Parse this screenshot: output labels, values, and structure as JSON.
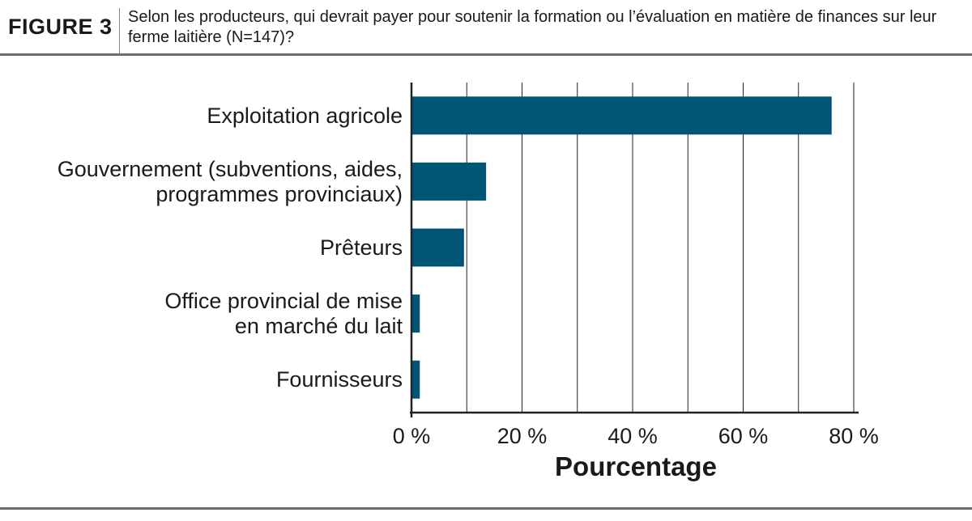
{
  "figure": {
    "label": "FIGURE 3",
    "title": "Selon les producteurs, qui devrait payer pour soutenir la formation ou l’évaluation en matière de finances sur leur ferme laitière (N=147)?"
  },
  "chart_data": {
    "type": "bar",
    "orientation": "horizontal",
    "categories": [
      [
        "Exploitation agricole"
      ],
      [
        "Gouvernement (subventions, aides,",
        "programmes provinciaux)"
      ],
      [
        "Prêteurs"
      ],
      [
        "Office provincial de mise",
        "en marché du lait"
      ],
      [
        "Fournisseurs"
      ]
    ],
    "values": [
      76,
      13.5,
      9.5,
      1.5,
      1.5
    ],
    "xlim": [
      0,
      80
    ],
    "xticks": [
      0,
      20,
      40,
      60,
      80
    ],
    "xtick_labels": [
      "0 %",
      "20 %",
      "40 %",
      "60 %",
      "80 %"
    ],
    "xlabel": "Pourcentage",
    "ylabel": "",
    "grid": "vertical",
    "bar_color": "#005574"
  }
}
